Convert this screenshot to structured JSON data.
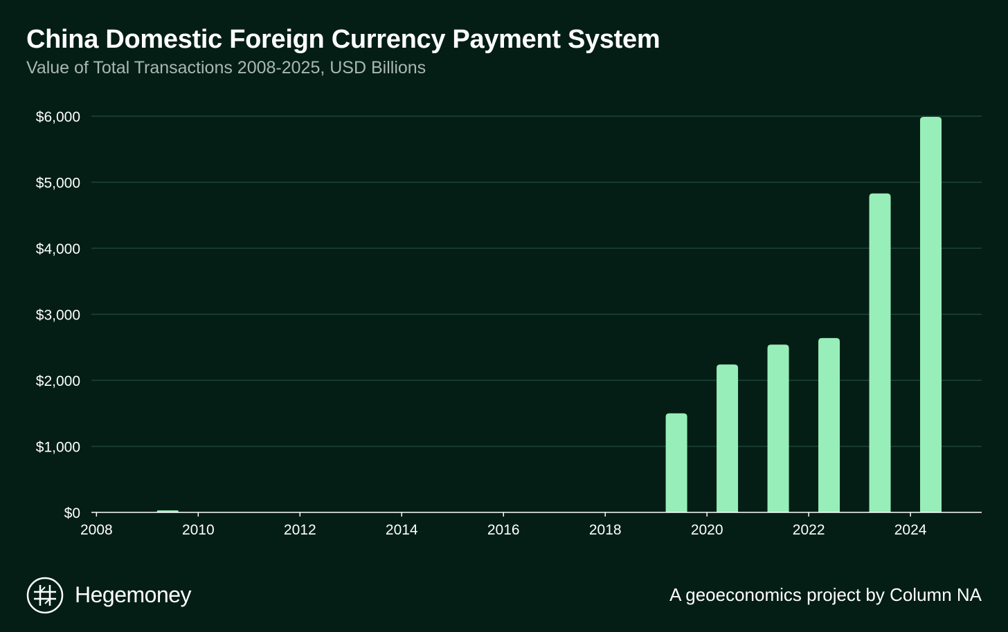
{
  "header": {
    "title": "China Domestic Foreign Currency Payment System",
    "subtitle": "Value of Total Transactions 2008-2025, USD Billions"
  },
  "footer": {
    "brand": "Hegemoney",
    "credit": "A geoeconomics project by Column NA",
    "logo_icon": "hegemoney-logo-icon"
  },
  "colors": {
    "background": "#041e16",
    "bar": "#98eeb8",
    "grid": "#1d4536",
    "axis": "#ffffff",
    "subtitle": "#a9b8b2"
  },
  "chart_data": {
    "type": "bar",
    "title": "China Domestic Foreign Currency Payment System",
    "subtitle": "Value of Total Transactions 2008-2025, USD Billions",
    "xlabel": "",
    "ylabel": "",
    "categories": [
      2008,
      2009,
      2010,
      2011,
      2012,
      2013,
      2014,
      2015,
      2016,
      2017,
      2018,
      2019,
      2020,
      2021,
      2022,
      2023,
      2024,
      2025
    ],
    "values": [
      0,
      30,
      0,
      0,
      0,
      0,
      0,
      0,
      0,
      0,
      0,
      1500,
      2240,
      2540,
      2640,
      4830,
      5990,
      null
    ],
    "xlim": [
      2007.9,
      2025.4
    ],
    "ylim": [
      0,
      6000
    ],
    "x_ticks": [
      2008,
      2010,
      2012,
      2014,
      2016,
      2018,
      2020,
      2022,
      2024
    ],
    "y_ticks": [
      0,
      1000,
      2000,
      3000,
      4000,
      5000,
      6000
    ],
    "y_tick_labels": [
      "$0",
      "$1,000",
      "$2,000",
      "$3,000",
      "$4,000",
      "$5,000",
      "$6,000"
    ],
    "grid": true,
    "legend": "none"
  }
}
